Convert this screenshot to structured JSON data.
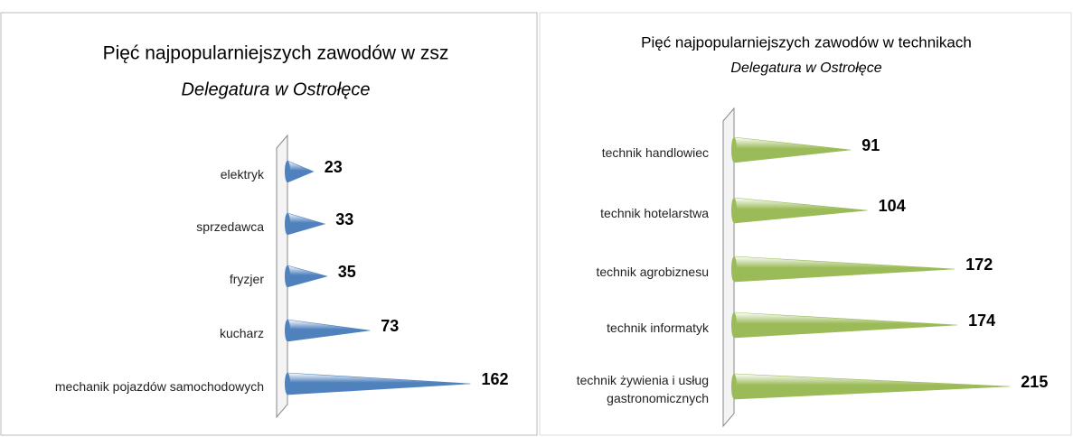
{
  "chart_data": [
    {
      "type": "bar",
      "orientation": "horizontal",
      "title": "Pięć najpopularniejszych zawodów w zsz",
      "subtitle": "Delegatura w Ostrołęce",
      "categories": [
        "elektryk",
        "sprzedawca",
        "fryzjer",
        "kucharz",
        "mechanik pojazdów samochodowych"
      ],
      "values": [
        23,
        33,
        35,
        73,
        162
      ],
      "color": "#4f81bd"
    },
    {
      "type": "bar",
      "orientation": "horizontal",
      "title": "Pięć najpopularniejszych zawodów w technikach",
      "subtitle": "Delegatura w Ostrołęce",
      "categories": [
        "technik handlowiec",
        "technik hotelarstwa",
        "technik agrobiznesu",
        "technik informatyk",
        "technik żywienia i usług gastronomicznych"
      ],
      "values": [
        91,
        104,
        172,
        174,
        215
      ],
      "color": "#9bbb59"
    }
  ]
}
